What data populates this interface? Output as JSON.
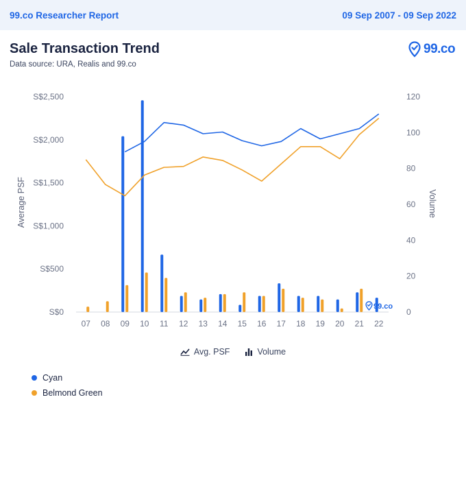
{
  "header": {
    "report_name": "99.co Researcher Report",
    "date_range": "09 Sep 2007 - 09 Sep 2022"
  },
  "title": "Sale Transaction Trend",
  "subtitle": "Data source: URA, Realis and 99.co",
  "logo": {
    "text": "99.co",
    "watermark_text": "99.co"
  },
  "legend": {
    "line_label": "Avg. PSF",
    "bar_label": "Volume"
  },
  "colors": {
    "cyan": "#1f66e5",
    "belmond": "#f0a12a",
    "brand": "#1f66e5"
  },
  "chart_data": {
    "type": "bar+line",
    "categories": [
      "07",
      "08",
      "09",
      "10",
      "11",
      "12",
      "13",
      "14",
      "15",
      "16",
      "17",
      "18",
      "19",
      "20",
      "21",
      "22"
    ],
    "y_left": {
      "label": "Average PSF",
      "min": 0,
      "max": 2500,
      "ticks": [
        0,
        500,
        1000,
        1500,
        2000,
        2500
      ],
      "tick_labels": [
        "S$0",
        "S$500",
        "S$1,000",
        "S$1,500",
        "S$2,000",
        "S$2,500"
      ]
    },
    "y_right": {
      "label": "Volume",
      "min": 0,
      "max": 120,
      "ticks": [
        0,
        20,
        40,
        60,
        80,
        100,
        120
      ],
      "tick_labels": [
        "0",
        "20",
        "40",
        "60",
        "80",
        "100",
        "120"
      ]
    },
    "series": [
      {
        "name": "Cyan",
        "color": "#1f66e5",
        "avg_psf": [
          null,
          null,
          1860,
          1980,
          2200,
          2170,
          2070,
          2090,
          1990,
          1930,
          1980,
          2130,
          2010,
          2070,
          2130,
          2300
        ],
        "volume": [
          0,
          0,
          98,
          118,
          32,
          9,
          7,
          10,
          4,
          9,
          16,
          9,
          9,
          7,
          11,
          8
        ]
      },
      {
        "name": "Belmond Green",
        "color": "#f0a12a",
        "avg_psf": [
          1770,
          1480,
          1350,
          1590,
          1680,
          1690,
          1800,
          1760,
          1650,
          1520,
          1720,
          1920,
          1920,
          1780,
          2060,
          2250
        ],
        "volume": [
          3,
          6,
          15,
          22,
          19,
          11,
          8,
          10,
          11,
          9,
          13,
          8,
          7,
          2,
          13,
          0
        ]
      }
    ]
  }
}
